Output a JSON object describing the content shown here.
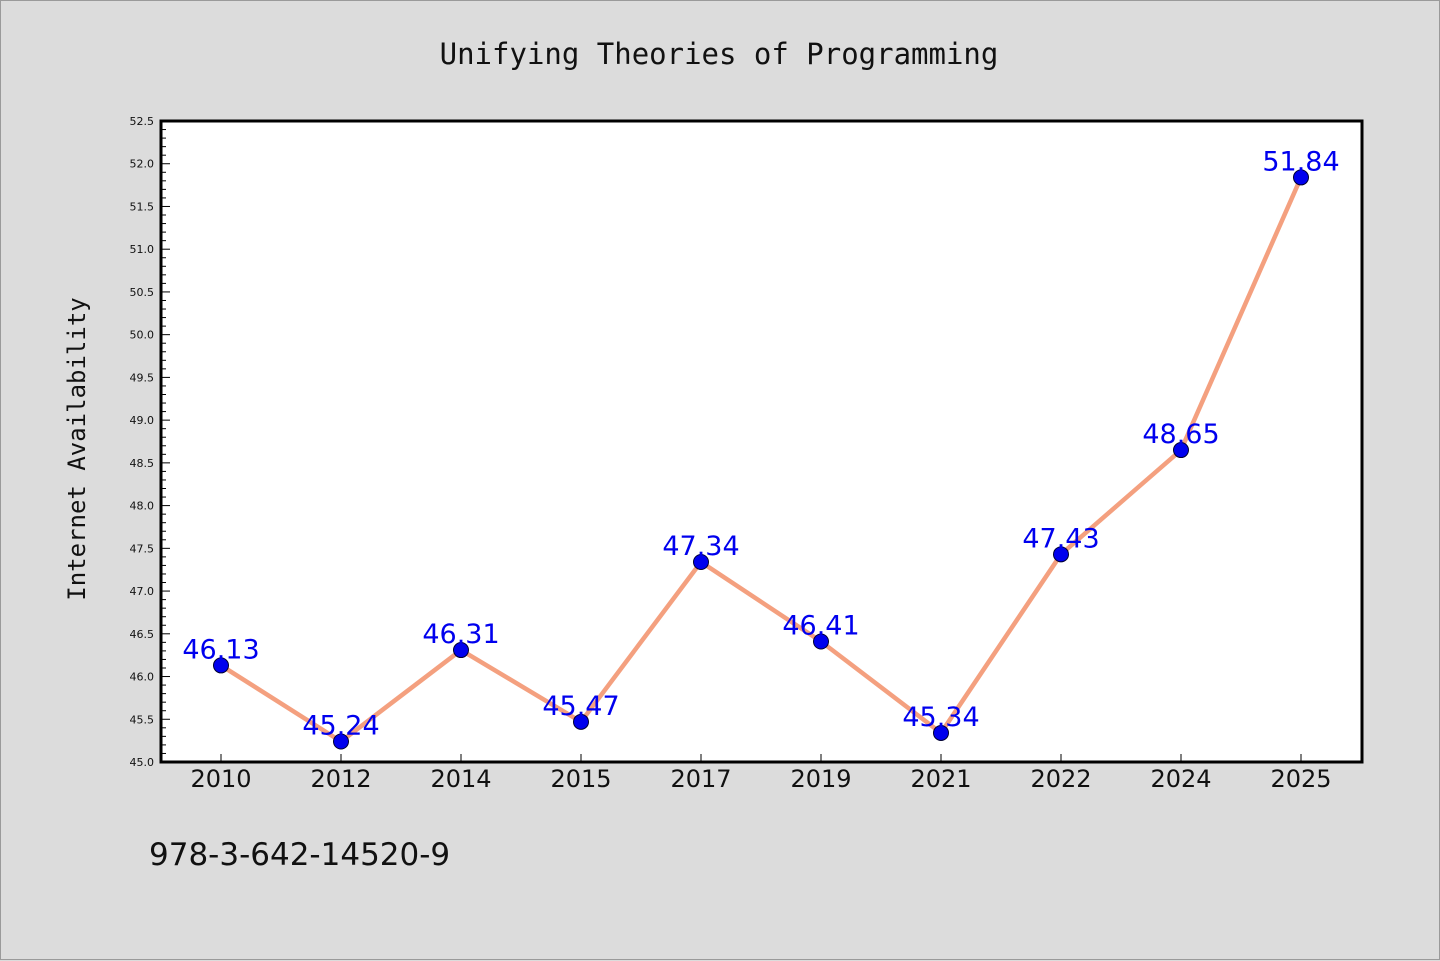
{
  "colors": {
    "background": "#dcdcdc",
    "plot_background": "#ffffff",
    "line": "#f4a07f",
    "marker": "#0000ee",
    "data_label": "#0000ee"
  },
  "footer": {
    "isbn": "978-3-642-14520-9"
  },
  "chart_data": {
    "type": "line",
    "title": "Unifying Theories of Programming",
    "xlabel": "",
    "ylabel": "Internet Availability",
    "categories": [
      "2010",
      "2012",
      "2014",
      "2015",
      "2017",
      "2019",
      "2021",
      "2022",
      "2024",
      "2025"
    ],
    "series": [
      {
        "values": [
          46.13,
          45.24,
          46.31,
          45.47,
          47.34,
          46.41,
          45.34,
          47.43,
          48.65,
          51.84
        ]
      }
    ],
    "data_labels": [
      "46.13",
      "45.24",
      "46.31",
      "45.47",
      "47.34",
      "46.41",
      "45.34",
      "47.43",
      "48.65",
      "51.84"
    ],
    "ylim": [
      45.0,
      52.5
    ],
    "y_major_ticks": [
      "45.0",
      "45.5",
      "46.0",
      "46.5",
      "47.0",
      "47.5",
      "48.0",
      "48.5",
      "49.0",
      "49.5",
      "50.0",
      "50.5",
      "51.0",
      "51.5",
      "52.0",
      "52.5"
    ],
    "y_minor_step": 0.1,
    "grid": false,
    "legend": "none"
  }
}
